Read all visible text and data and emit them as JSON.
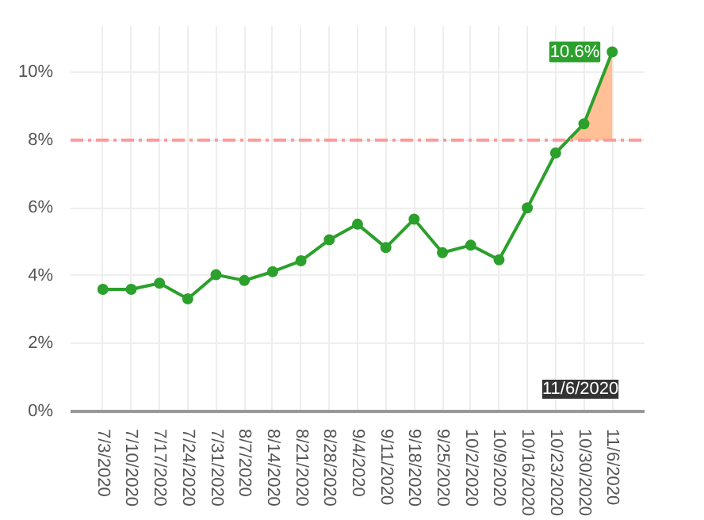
{
  "chart_data": {
    "type": "line",
    "x": [
      "2020-07-03",
      "2020-07-10",
      "2020-07-17",
      "2020-07-24",
      "2020-07-31",
      "2020-08-07",
      "2020-08-14",
      "2020-08-21",
      "2020-08-28",
      "2020-09-04",
      "2020-09-11",
      "2020-09-18",
      "2020-09-25",
      "2020-10-02",
      "2020-10-09",
      "2020-10-16",
      "2020-10-23",
      "2020-10-30",
      "2020-11-06"
    ],
    "series": [
      {
        "color": "#2ca02c",
        "marker": "circle",
        "line_style": "solid",
        "values": [
          3.6,
          3.6,
          3.78,
          3.32,
          4.03,
          3.86,
          4.12,
          4.44,
          5.06,
          5.52,
          4.83,
          5.67,
          4.68,
          4.9,
          4.47,
          6.0,
          7.62,
          8.48,
          10.6
        ],
        "value_labels": [
          null,
          null,
          null,
          null,
          null,
          null,
          null,
          null,
          null,
          null,
          null,
          null,
          null,
          null,
          null,
          null,
          null,
          null,
          "10.6%"
        ]
      },
      {
        "type": "area",
        "color": "#ffb98a",
        "x": [
          "2020-10-26",
          "2020-10-30",
          "2020-11-06"
        ],
        "values": [
          8,
          8.48,
          10.6
        ]
      }
    ],
    "xlim": [
      "2020-06-25",
      "2020-11-14"
    ],
    "xticks": [
      {
        "value": "2020-07-03",
        "label": "7/3/2020"
      },
      {
        "value": "2020-07-10",
        "label": "7/10/2020"
      },
      {
        "value": "2020-07-17",
        "label": "7/17/2020"
      },
      {
        "value": "2020-07-24",
        "label": "7/24/2020"
      },
      {
        "value": "2020-07-31",
        "label": "7/31/2020"
      },
      {
        "value": "2020-08-07",
        "label": "8/7/2020"
      },
      {
        "value": "2020-08-14",
        "label": "8/14/2020"
      },
      {
        "value": "2020-08-21",
        "label": "8/21/2020"
      },
      {
        "value": "2020-08-28",
        "label": "8/28/2020"
      },
      {
        "value": "2020-09-04",
        "label": "9/4/2020"
      },
      {
        "value": "2020-09-11",
        "label": "9/11/2020"
      },
      {
        "value": "2020-09-18",
        "label": "9/18/2020"
      },
      {
        "value": "2020-09-25",
        "label": "9/25/2020"
      },
      {
        "value": "2020-10-02",
        "label": "10/2/2020"
      },
      {
        "value": "2020-10-09",
        "label": "10/9/2020"
      },
      {
        "value": "2020-10-16",
        "label": "10/16/2020"
      },
      {
        "value": "2020-10-23",
        "label": "10/23/2020"
      },
      {
        "value": "2020-10-30",
        "label": "10/30/2020"
      },
      {
        "value": "2020-11-06",
        "label": "11/6/2020"
      }
    ],
    "ylim": [
      0,
      11.36
    ],
    "yticks": [
      {
        "value": 0,
        "label": "0%"
      },
      {
        "value": 2,
        "label": "2%"
      },
      {
        "value": 4,
        "label": "4%"
      },
      {
        "value": 6,
        "label": "6%"
      },
      {
        "value": 8,
        "label": "8%"
      },
      {
        "value": 10,
        "label": "10%"
      }
    ],
    "ref_lines": [
      {
        "axis": "y",
        "value": 8,
        "color": "#ff9a9a",
        "line_style": "dashdot"
      }
    ],
    "annotations": [
      "11/6/2020"
    ],
    "grid": true
  }
}
